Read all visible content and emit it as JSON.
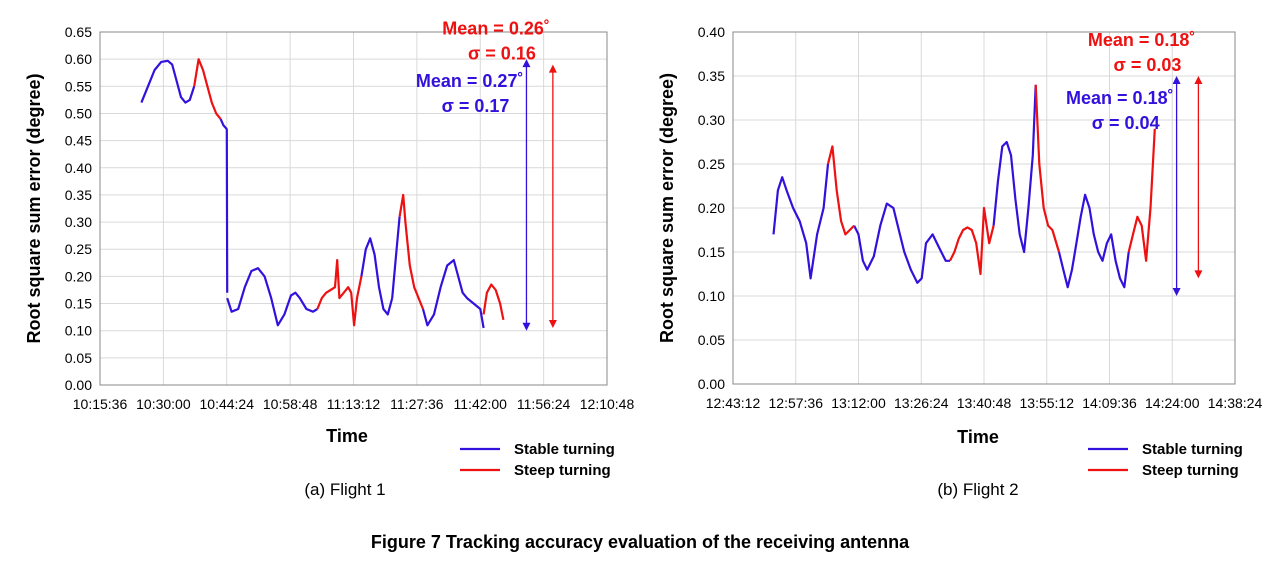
{
  "figure_title": "Figure 7  Tracking accuracy evaluation of the receiving antenna",
  "colors": {
    "stable": "#3311dd",
    "steep": "#ee1111",
    "grid": "#d9d9d9",
    "axis": "#888888"
  },
  "chart_data": [
    {
      "type": "line",
      "caption": "(a) Flight 1",
      "xlabel": "Time",
      "ylabel": "Root square sum error (degree)",
      "ylim": [
        0,
        0.65
      ],
      "yticks": [
        "0.00",
        "0.05",
        "0.10",
        "0.15",
        "0.20",
        "0.25",
        "0.30",
        "0.35",
        "0.40",
        "0.45",
        "0.50",
        "0.55",
        "0.60",
        "0.65"
      ],
      "xticks": [
        "10:15:36",
        "10:30:00",
        "10:44:24",
        "10:58:48",
        "11:13:12",
        "11:27:36",
        "11:42:00",
        "11:56:24",
        "12:10:48"
      ],
      "xlim": [
        "10:15:36",
        "12:10:48"
      ],
      "grid": true,
      "legend_position": "bottom-right",
      "series": [
        {
          "name": "Stable turning",
          "color": "#3311dd",
          "segments": [
            {
              "x": [
                "10:25:00",
                "10:26:30",
                "10:28:00",
                "10:29:30",
                "10:31:00",
                "10:32:00",
                "10:33:00",
                "10:34:00",
                "10:35:00",
                "10:36:00",
                "10:37:00"
              ],
              "y": [
                0.52,
                0.55,
                0.58,
                0.595,
                0.597,
                0.59,
                0.56,
                0.53,
                0.52,
                0.525,
                0.55
              ]
            },
            {
              "x": [
                "10:43:00",
                "10:43:40",
                "10:44:20",
                "10:44:24",
                "10:44:30"
              ],
              "y": [
                0.49,
                0.478,
                0.472,
                0.47,
                0.17
              ]
            },
            {
              "x": [
                "10:44:30",
                "10:45:30",
                "10:47:00",
                "10:48:30",
                "10:50:00",
                "10:51:30",
                "10:53:00",
                "10:54:30",
                "10:56:00",
                "10:57:30",
                "10:59:00",
                "11:00:00",
                "11:01:00",
                "11:02:30",
                "11:04:00",
                "11:05:00"
              ],
              "y": [
                0.16,
                0.135,
                0.14,
                0.18,
                0.21,
                0.215,
                0.2,
                0.16,
                0.11,
                0.13,
                0.165,
                0.17,
                0.16,
                0.14,
                0.135,
                0.14
              ]
            },
            {
              "x": [
                "11:15:00",
                "11:16:00",
                "11:17:00",
                "11:18:00",
                "11:19:00",
                "11:20:00",
                "11:21:00",
                "11:22:00"
              ],
              "y": [
                0.2,
                0.25,
                0.27,
                0.24,
                0.18,
                0.14,
                0.13,
                0.16
              ]
            },
            {
              "x": [
                "11:22:00",
                "11:23:00",
                "11:23:40"
              ],
              "y": [
                0.16,
                0.25,
                0.31
              ]
            },
            {
              "x": [
                "11:29:00",
                "11:30:00",
                "11:31:30",
                "11:33:00",
                "11:34:30",
                "11:36:00",
                "11:37:00",
                "11:38:00",
                "11:39:00",
                "11:40:30",
                "11:42:00",
                "11:42:45"
              ],
              "y": [
                0.14,
                0.11,
                0.13,
                0.18,
                0.22,
                0.23,
                0.2,
                0.17,
                0.16,
                0.15,
                0.14,
                0.105
              ]
            }
          ]
        },
        {
          "name": "Steep turning",
          "color": "#ee1111",
          "segments": [
            {
              "x": [
                "10:37:00",
                "10:38:00",
                "10:39:00",
                "10:40:00",
                "10:41:00",
                "10:42:00",
                "10:43:00"
              ],
              "y": [
                0.55,
                0.6,
                0.58,
                0.55,
                0.52,
                0.5,
                0.49
              ]
            },
            {
              "x": [
                "11:05:00",
                "11:06:00",
                "11:07:00",
                "11:08:00",
                "11:09:00",
                "11:09:30",
                "11:10:00",
                "11:11:00",
                "11:12:00",
                "11:12:40",
                "11:13:20",
                "11:14:00",
                "11:15:00"
              ],
              "y": [
                0.14,
                0.16,
                0.17,
                0.175,
                0.18,
                0.23,
                0.16,
                0.17,
                0.18,
                0.17,
                0.11,
                0.16,
                0.2
              ]
            },
            {
              "x": [
                "11:23:40",
                "11:24:30",
                "11:25:00",
                "11:26:00",
                "11:27:00",
                "11:28:00",
                "11:29:00"
              ],
              "y": [
                0.31,
                0.35,
                0.3,
                0.22,
                0.18,
                0.16,
                0.14
              ]
            },
            {
              "x": [
                "11:42:45",
                "11:43:30",
                "11:44:30",
                "11:45:30",
                "11:46:30",
                "11:47:15"
              ],
              "y": [
                0.13,
                0.17,
                0.185,
                0.175,
                0.15,
                0.12
              ]
            }
          ]
        }
      ],
      "annotations": [
        {
          "label": "Mean = 0.27˚",
          "label2": "σ = 0.17",
          "color": "#3311dd",
          "x": "11:52:30",
          "y_range": [
            0.1,
            0.6
          ]
        },
        {
          "label": "Mean = 0.26˚",
          "label2": "σ = 0.16",
          "color": "#ee1111",
          "x": "11:58:30",
          "y_range": [
            0.105,
            0.59
          ]
        }
      ]
    },
    {
      "type": "line",
      "caption": "(b) Flight 2",
      "xlabel": "Time",
      "ylabel": "Root square sum error (degree)",
      "ylim": [
        0,
        0.4
      ],
      "yticks": [
        "0.00",
        "0.05",
        "0.10",
        "0.15",
        "0.20",
        "0.25",
        "0.30",
        "0.35",
        "0.40"
      ],
      "xticks": [
        "12:43:12",
        "12:57:36",
        "13:12:00",
        "13:26:24",
        "13:40:48",
        "13:55:12",
        "14:09:36",
        "14:24:00",
        "14:38:24"
      ],
      "xlim": [
        "12:43:12",
        "14:38:24"
      ],
      "grid": true,
      "legend_position": "bottom-right",
      "series": [
        {
          "name": "Stable turning",
          "color": "#3311dd",
          "segments": [
            {
              "x": [
                "12:52:30",
                "12:53:30",
                "12:54:30",
                "12:55:30",
                "12:57:00",
                "12:58:30",
                "13:00:00",
                "13:01:00",
                "13:02:30",
                "13:04:00",
                "13:05:00"
              ],
              "y": [
                0.17,
                0.22,
                0.235,
                0.22,
                0.2,
                0.185,
                0.16,
                0.12,
                0.17,
                0.2,
                0.25
              ]
            },
            {
              "x": [
                "13:11:00",
                "13:12:00",
                "13:13:00",
                "13:14:00",
                "13:15:30",
                "13:17:00",
                "13:18:30",
                "13:20:00",
                "13:21:30",
                "13:22:30",
                "13:24:00",
                "13:25:30",
                "13:26:30",
                "13:27:30",
                "13:29:00",
                "13:30:30",
                "13:32:00",
                "13:33:00"
              ],
              "y": [
                0.18,
                0.17,
                0.14,
                0.13,
                0.145,
                0.18,
                0.205,
                0.2,
                0.17,
                0.15,
                0.13,
                0.115,
                0.12,
                0.16,
                0.17,
                0.155,
                0.14,
                0.14
              ]
            },
            {
              "x": [
                "13:43:00",
                "13:44:00",
                "13:45:00",
                "13:46:00",
                "13:47:00",
                "13:48:00",
                "13:49:00",
                "13:50:00",
                "13:51:00",
                "13:52:00",
                "13:52:40"
              ],
              "y": [
                0.18,
                0.23,
                0.27,
                0.275,
                0.26,
                0.21,
                0.17,
                0.15,
                0.2,
                0.26,
                0.34
              ]
            },
            {
              "x": [
                "13:58:00",
                "13:59:00",
                "14:00:00",
                "14:01:00",
                "14:02:00",
                "14:03:00",
                "14:04:00",
                "14:05:00",
                "14:06:00",
                "14:07:00",
                "14:08:00",
                "14:09:00",
                "14:10:00",
                "14:11:00",
                "14:12:00",
                "14:13:00",
                "14:14:00"
              ],
              "y": [
                0.15,
                0.13,
                0.11,
                0.13,
                0.16,
                0.19,
                0.215,
                0.2,
                0.17,
                0.15,
                0.14,
                0.16,
                0.17,
                0.14,
                0.12,
                0.11,
                0.15
              ]
            }
          ]
        },
        {
          "name": "Steep turning",
          "color": "#ee1111",
          "segments": [
            {
              "x": [
                "13:05:00",
                "13:06:00",
                "13:07:00",
                "13:08:00",
                "13:09:00",
                "13:10:00",
                "13:11:00"
              ],
              "y": [
                0.25,
                0.27,
                0.22,
                0.185,
                0.17,
                0.175,
                0.18
              ]
            },
            {
              "x": [
                "13:33:00",
                "13:34:00",
                "13:35:00",
                "13:36:00",
                "13:37:00",
                "13:38:00",
                "13:39:00",
                "13:40:00",
                "13:40:48",
                "13:42:00",
                "13:43:00"
              ],
              "y": [
                0.14,
                0.15,
                0.165,
                0.175,
                0.178,
                0.175,
                0.16,
                0.125,
                0.2,
                0.16,
                0.18
              ]
            },
            {
              "x": [
                "13:52:40",
                "13:53:30",
                "13:54:30",
                "13:55:30",
                "13:56:30",
                "13:58:00"
              ],
              "y": [
                0.34,
                0.25,
                0.2,
                0.18,
                0.175,
                0.15
              ]
            },
            {
              "x": [
                "14:14:00",
                "14:15:00",
                "14:16:00",
                "14:17:00",
                "14:18:00",
                "14:19:00",
                "14:20:00"
              ],
              "y": [
                0.15,
                0.17,
                0.19,
                0.18,
                0.14,
                0.2,
                0.29
              ]
            }
          ]
        }
      ],
      "annotations": [
        {
          "label": "Mean = 0.18˚",
          "label2": "σ = 0.04",
          "color": "#3311dd",
          "x": "14:25:00",
          "y_range": [
            0.1,
            0.35
          ]
        },
        {
          "label": "Mean = 0.18˚",
          "label2": "σ = 0.03",
          "color": "#ee1111",
          "x": "14:30:00",
          "y_range": [
            0.12,
            0.35
          ]
        }
      ]
    }
  ]
}
